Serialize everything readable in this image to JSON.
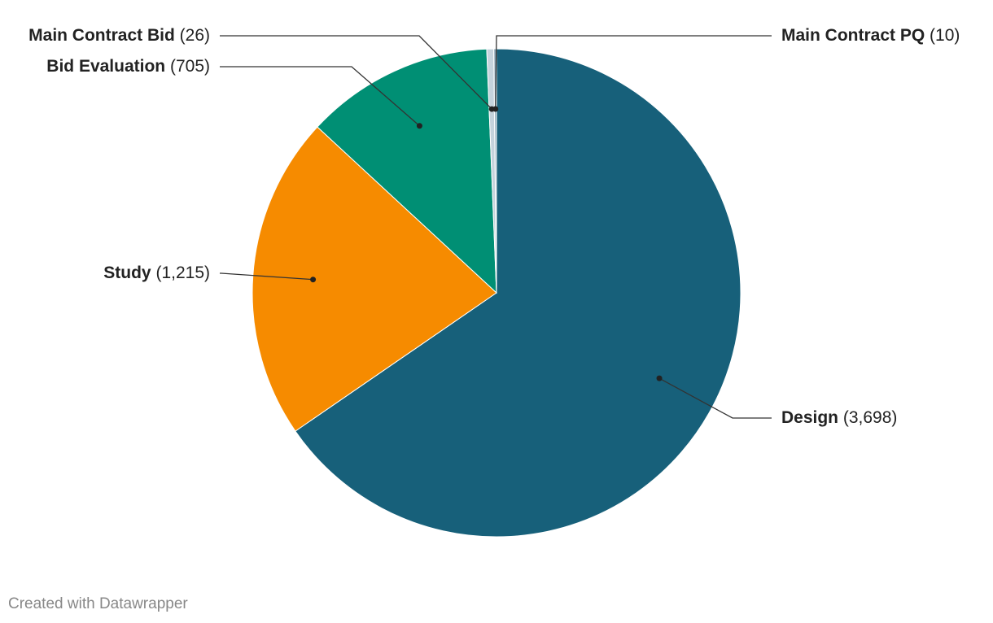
{
  "chart_data": {
    "type": "pie",
    "categories": [
      "Design",
      "Study",
      "Bid Evaluation",
      "Main Contract Bid",
      "Main Contract PQ"
    ],
    "values": [
      3698,
      1215,
      705,
      26,
      10
    ],
    "value_labels": [
      "(3,698)",
      "(1,215)",
      "(705)",
      "(26)",
      "(10)"
    ],
    "colors": [
      "#17607a",
      "#f68b00",
      "#008f74",
      "#c5d3dc",
      "#8ea9b9"
    ],
    "footer": "Created with Datawrapper"
  }
}
